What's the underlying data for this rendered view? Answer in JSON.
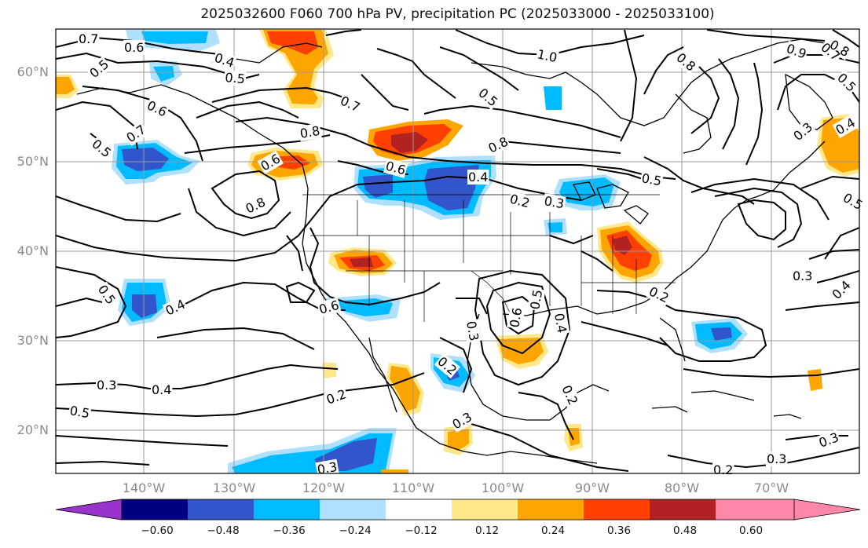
{
  "title": "2025032600 F060 700 hPa PV, precipitation PC (2025033000 - 2025033100)",
  "lat_labels": [
    "60°N",
    "50°N",
    "40°N",
    "30°N",
    "20°N"
  ],
  "lon_labels": [
    "140°W",
    "130°W",
    "120°W",
    "110°W",
    "100°W",
    "90°W",
    "80°W",
    "70°W"
  ],
  "colorbar": {
    "tick_labels": [
      "−0.60",
      "−0.48",
      "−0.36",
      "−0.24",
      "−0.12",
      "0.12",
      "0.24",
      "0.36",
      "0.48",
      "0.60"
    ],
    "colors": [
      "#9933cc",
      "#000080",
      "#3355cc",
      "#00bbff",
      "#b0e0ff",
      "#ffffff",
      "#ffe88a",
      "#ffa500",
      "#ff4000",
      "#b22222",
      "#ff88aa"
    ]
  },
  "contour_labels": [
    "0.7",
    "0.6",
    "0.4",
    "0.5",
    "1.0",
    "0.8",
    "0.9",
    "0.7",
    "0.5",
    "0.6",
    "0.7",
    "0.5",
    "0.8",
    "0.8",
    "0.6",
    "0.4",
    "0.2",
    "0.3",
    "0.5",
    "0.8",
    "0.5",
    "0.4",
    "0.6",
    "0.3",
    "0.2",
    "0.6",
    "0.5",
    "0.4",
    "0.2",
    "0.3",
    "0.4",
    "0.3",
    "0.5",
    "0.2",
    "0.3",
    "0.3",
    "0.2",
    "0.3",
    "0.2",
    "0.3",
    "0.7",
    "0.5",
    "0.4",
    "0.5",
    "0.8",
    "0.6",
    "0.5",
    "0.3",
    "0.4"
  ],
  "field": "700 hPa PV",
  "shading": "precipitation PC"
}
